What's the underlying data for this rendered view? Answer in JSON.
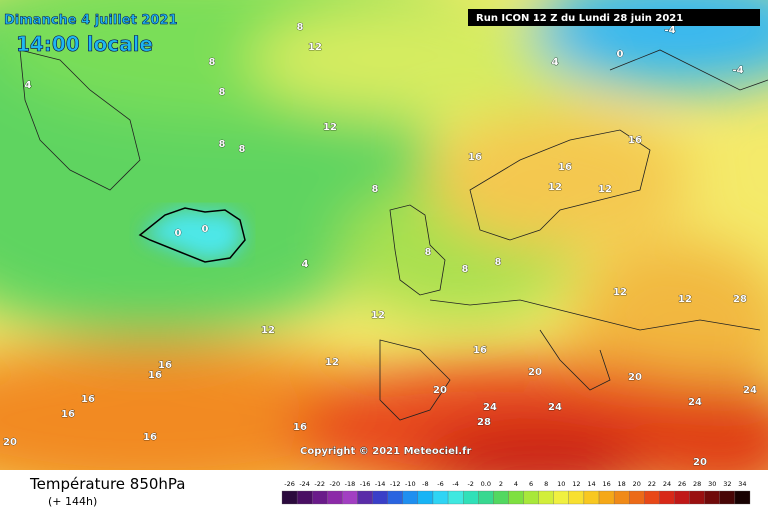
{
  "header": {
    "date": "Dimanche 4 juillet 2021",
    "time": "14:00 locale",
    "run": "Run ICON 12 Z du Lundi 28 juin 2021"
  },
  "map": {
    "copyright": "Copyright © 2021 Meteociel.fr",
    "contour_labels": [
      "8",
      "12",
      "4",
      "0",
      "-4",
      "-4",
      "4",
      "8",
      "8",
      "8",
      "8",
      "12",
      "8",
      "16",
      "16",
      "16",
      "12",
      "12",
      "0",
      "0",
      "4",
      "8",
      "8",
      "8",
      "12",
      "12",
      "28",
      "12",
      "12",
      "12",
      "16",
      "20",
      "20",
      "24",
      "28",
      "24",
      "24",
      "24",
      "16",
      "16",
      "16",
      "16",
      "20",
      "20",
      "16",
      "16",
      "20"
    ]
  },
  "legend": {
    "title": "Température 850hPa",
    "subtitle": "(+ 144h)",
    "labels": [
      "-26",
      "-24",
      "-22",
      "-20",
      "-18",
      "-16",
      "-14",
      "-12",
      "-10",
      "-8",
      "-6",
      "-4",
      "-2",
      "0.0",
      "2",
      "4",
      "6",
      "8",
      "10",
      "12",
      "14",
      "16",
      "18",
      "20",
      "22",
      "24",
      "26",
      "28",
      "30",
      "32",
      "34"
    ],
    "colors": [
      "#2b0a3d",
      "#4a0f63",
      "#6a1b8a",
      "#8c2aa8",
      "#a23fc2",
      "#5a2ca8",
      "#3a3fc8",
      "#2a64e0",
      "#1f8ff0",
      "#18b4f5",
      "#2fd4f4",
      "#3fe8e0",
      "#30e0b8",
      "#38d890",
      "#52d860",
      "#7ee040",
      "#a8e83a",
      "#d2ee3a",
      "#f0f040",
      "#f8e030",
      "#f8c820",
      "#f5a818",
      "#f08a18",
      "#ec6a18",
      "#e84818",
      "#d82818",
      "#c01818",
      "#9a1010",
      "#700a0a",
      "#480606",
      "#180202"
    ]
  }
}
